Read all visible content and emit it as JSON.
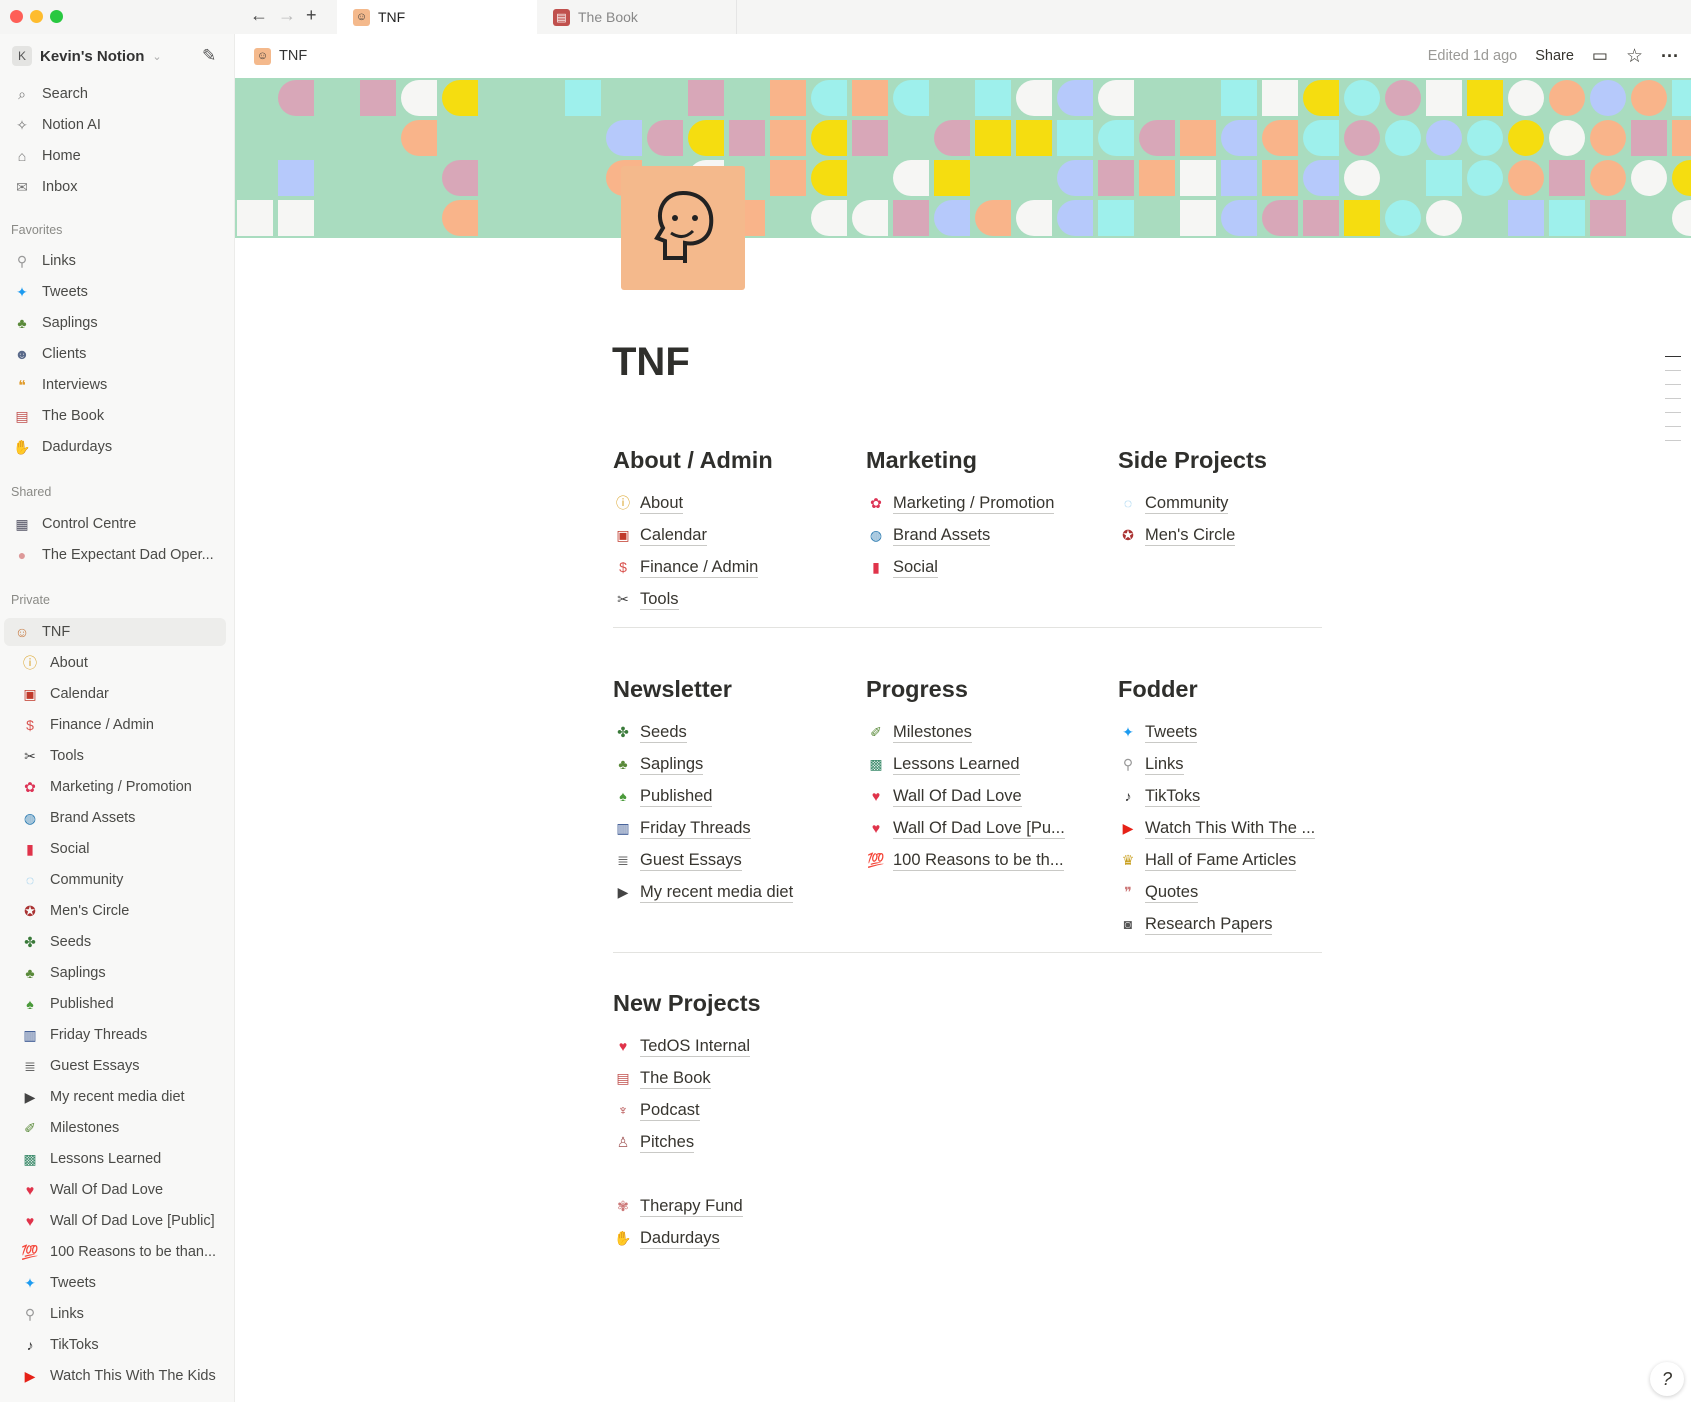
{
  "tabs": [
    {
      "label": "TNF",
      "icon": "tnf-face-icon",
      "active": true
    },
    {
      "label": "The Book",
      "icon": "book-icon",
      "active": false
    }
  ],
  "workspace": {
    "initial": "K",
    "name": "Kevin's Notion"
  },
  "sidebar": {
    "top": [
      {
        "label": "Search",
        "icon": "search-icon"
      },
      {
        "label": "Notion AI",
        "icon": "notion-ai-icon"
      },
      {
        "label": "Home",
        "icon": "home-icon"
      },
      {
        "label": "Inbox",
        "icon": "inbox-icon"
      }
    ],
    "favorites_label": "Favorites",
    "favorites": [
      {
        "label": "Links",
        "icon": "paperclip-icon"
      },
      {
        "label": "Tweets",
        "icon": "bird-icon"
      },
      {
        "label": "Saplings",
        "icon": "sapling-icon"
      },
      {
        "label": "Clients",
        "icon": "person-icon"
      },
      {
        "label": "Interviews",
        "icon": "speech-icon"
      },
      {
        "label": "The Book",
        "icon": "book-icon"
      },
      {
        "label": "Dadurdays",
        "icon": "handshake-icon"
      }
    ],
    "shared_label": "Shared",
    "shared": [
      {
        "label": "Control Centre",
        "icon": "control-icon"
      },
      {
        "label": "The Expectant Dad Oper...",
        "icon": "palette-icon"
      }
    ],
    "private_label": "Private",
    "private_root": {
      "label": "TNF",
      "icon": "tnf-face-icon"
    },
    "private": [
      {
        "label": "About",
        "icon": "info-icon"
      },
      {
        "label": "Calendar",
        "icon": "calendar-icon"
      },
      {
        "label": "Finance / Admin",
        "icon": "money-icon"
      },
      {
        "label": "Tools",
        "icon": "tools-icon"
      },
      {
        "label": "Marketing / Promotion",
        "icon": "marketing-icon"
      },
      {
        "label": "Brand Assets",
        "icon": "globe-icon"
      },
      {
        "label": "Social",
        "icon": "bookmark-icon"
      },
      {
        "label": "Community",
        "icon": "community-icon"
      },
      {
        "label": "Men's Circle",
        "icon": "circle-icon"
      },
      {
        "label": "Seeds",
        "icon": "seedling-icon"
      },
      {
        "label": "Saplings",
        "icon": "sapling-icon"
      },
      {
        "label": "Published",
        "icon": "tree-icon"
      },
      {
        "label": "Friday Threads",
        "icon": "thread-icon"
      },
      {
        "label": "Guest Essays",
        "icon": "document-icon"
      },
      {
        "label": "My recent media diet",
        "icon": "media-icon"
      },
      {
        "label": "Milestones",
        "icon": "champagne-icon"
      },
      {
        "label": "Lessons Learned",
        "icon": "abc-icon"
      },
      {
        "label": "Wall Of Dad Love",
        "icon": "heart-icon"
      },
      {
        "label": "Wall Of Dad Love [Public]",
        "icon": "heart-icon"
      },
      {
        "label": "100 Reasons to be than...",
        "icon": "hundred-icon"
      },
      {
        "label": "Tweets",
        "icon": "bird-icon"
      },
      {
        "label": "Links",
        "icon": "paperclip-icon"
      },
      {
        "label": "TikToks",
        "icon": "tiktok-icon"
      },
      {
        "label": "Watch This With The Kids",
        "icon": "youtube-icon"
      }
    ]
  },
  "header": {
    "breadcrumb": "TNF",
    "edited": "Edited 1d ago",
    "share": "Share"
  },
  "page": {
    "title": "TNF",
    "sections": [
      [
        {
          "heading": "About / Admin",
          "items": [
            {
              "label": "About",
              "icon": "info-icon"
            },
            {
              "label": "Calendar",
              "icon": "calendar-icon"
            },
            {
              "label": "Finance / Admin",
              "icon": "money-icon"
            },
            {
              "label": "Tools",
              "icon": "tools-icon"
            }
          ]
        },
        {
          "heading": "Marketing",
          "items": [
            {
              "label": "Marketing / Promotion",
              "icon": "marketing-icon"
            },
            {
              "label": "Brand Assets",
              "icon": "globe-icon"
            },
            {
              "label": "Social",
              "icon": "bookmark-icon"
            }
          ]
        },
        {
          "heading": "Side Projects",
          "items": [
            {
              "label": "Community",
              "icon": "community-icon"
            },
            {
              "label": "Men's Circle",
              "icon": "circle-icon"
            }
          ]
        }
      ],
      [
        {
          "heading": "Newsletter",
          "items": [
            {
              "label": "Seeds",
              "icon": "seedling-icon"
            },
            {
              "label": "Saplings",
              "icon": "sapling-icon"
            },
            {
              "label": "Published",
              "icon": "tree-icon"
            },
            {
              "label": "Friday Threads",
              "icon": "thread-icon"
            },
            {
              "label": "Guest Essays",
              "icon": "document-icon"
            },
            {
              "label": "My recent media diet",
              "icon": "media-icon"
            }
          ]
        },
        {
          "heading": "Progress",
          "items": [
            {
              "label": "Milestones",
              "icon": "champagne-icon"
            },
            {
              "label": "Lessons Learned",
              "icon": "abc-icon"
            },
            {
              "label": "Wall Of Dad Love",
              "icon": "heart-icon"
            },
            {
              "label": "Wall Of Dad Love [Pu...",
              "icon": "heart-icon"
            },
            {
              "label": "100 Reasons to be th...",
              "icon": "hundred-icon"
            }
          ]
        },
        {
          "heading": "Fodder",
          "items": [
            {
              "label": "Tweets",
              "icon": "bird-icon"
            },
            {
              "label": "Links",
              "icon": "paperclip-icon"
            },
            {
              "label": "TikToks",
              "icon": "tiktok-icon"
            },
            {
              "label": "Watch This With The ...",
              "icon": "youtube-icon"
            },
            {
              "label": "Hall of Fame Articles",
              "icon": "trophy-icon"
            },
            {
              "label": "Quotes",
              "icon": "quote-icon"
            },
            {
              "label": "Research Papers",
              "icon": "camera-icon"
            }
          ]
        }
      ],
      [
        {
          "heading": "New Projects",
          "items": [
            {
              "label": "TedOS Internal",
              "icon": "heart-icon"
            },
            {
              "label": "The Book",
              "icon": "book-icon"
            },
            {
              "label": "Podcast",
              "icon": "microphone-icon"
            },
            {
              "label": "Pitches",
              "icon": "juggler-icon"
            },
            {
              "label": "",
              "icon": ""
            },
            {
              "label": "Therapy Fund",
              "icon": "brain-icon"
            },
            {
              "label": "Dadurdays",
              "icon": "handshake-icon"
            }
          ]
        }
      ]
    ]
  },
  "colors": {
    "cover_bg": "#a9dcbf",
    "cover_palette": [
      "#d8a7b8",
      "#9ef0ec",
      "#f6f6f4",
      "#f9b48a",
      "#f5dd10",
      "#b6c9fb",
      "#a9dcbf"
    ],
    "icon_bg": "#f4b98c"
  }
}
